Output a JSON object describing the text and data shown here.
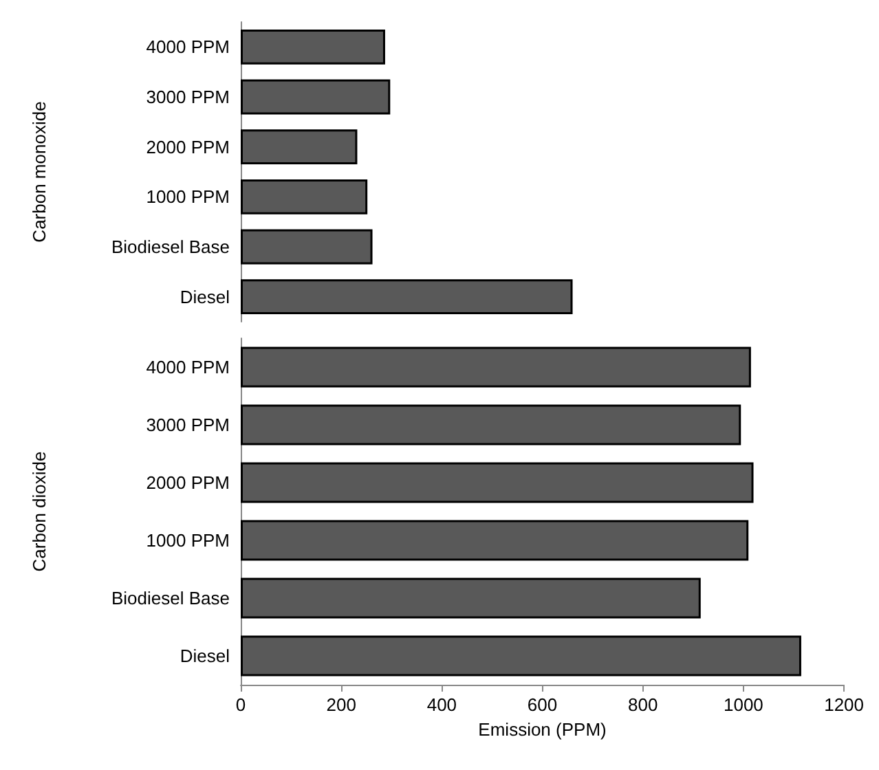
{
  "chart_data": [
    {
      "type": "bar",
      "orientation": "horizontal",
      "ylabel": "Carbon monoxide",
      "categories": [
        "4000 PPM",
        "3000 PPM",
        "2000 PPM",
        "1000 PPM",
        "Biodiesel Base",
        "Diesel"
      ],
      "values": [
        285,
        295,
        230,
        250,
        260,
        655
      ],
      "color": "#595959",
      "xlim": [
        0,
        1200
      ],
      "xticks": [
        0,
        200,
        400,
        600,
        800,
        1000,
        1200
      ],
      "tick_labels": "y"
    },
    {
      "type": "bar",
      "orientation": "horizontal",
      "ylabel": "Carbon dioxide",
      "xlabel": "Emission (PPM)",
      "categories": [
        "4000 PPM",
        "3000 PPM",
        "2000 PPM",
        "1000 PPM",
        "Biodiesel Base",
        "Diesel"
      ],
      "values": [
        1015,
        995,
        1020,
        1010,
        915,
        1115
      ],
      "color": "#595959",
      "xlim": [
        0,
        1200
      ],
      "xticks": [
        0,
        200,
        400,
        600,
        800,
        1000,
        1200
      ]
    }
  ]
}
